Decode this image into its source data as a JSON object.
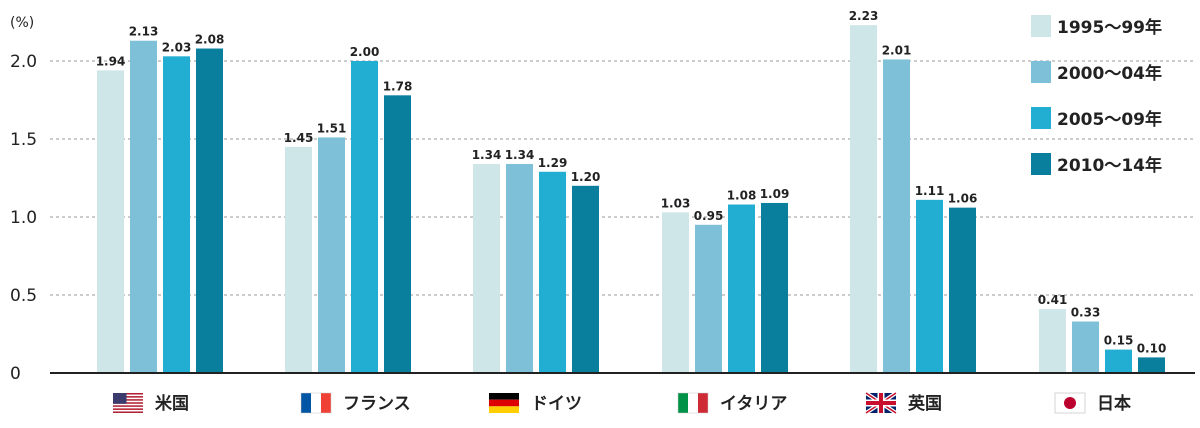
{
  "chart_data": {
    "type": "bar",
    "unit_label": "(%)",
    "categories": [
      "米国",
      "フランス",
      "ドイツ",
      "イタリア",
      "英国",
      "日本"
    ],
    "flags": [
      "us-flag-icon",
      "france-flag-icon",
      "germany-flag-icon",
      "italy-flag-icon",
      "uk-flag-icon",
      "japan-flag-icon"
    ],
    "series": [
      {
        "name": "1995～99年",
        "color": "#cfe6e9",
        "values": [
          1.94,
          1.45,
          1.34,
          1.03,
          2.23,
          0.41
        ],
        "labels": [
          "1.94",
          "1.45",
          "1.34",
          "1.03",
          "2.23",
          "0.41"
        ]
      },
      {
        "name": "2000～04年",
        "color": "#7ec0d7",
        "values": [
          2.13,
          1.51,
          1.34,
          0.95,
          2.01,
          0.33
        ],
        "labels": [
          "2.13",
          "1.51",
          "1.34",
          "0.95",
          "2.01",
          "0.33"
        ]
      },
      {
        "name": "2005～09年",
        "color": "#22aed3",
        "values": [
          2.03,
          2.0,
          1.29,
          1.08,
          1.11,
          0.15
        ],
        "labels": [
          "2.03",
          "2.00",
          "1.29",
          "1.08",
          "1.11",
          "0.15"
        ]
      },
      {
        "name": "2010～14年",
        "color": "#0a7f9d",
        "values": [
          2.08,
          1.78,
          1.2,
          1.09,
          1.06,
          0.1
        ],
        "labels": [
          "2.08",
          "1.78",
          "1.20",
          "1.09",
          "1.06",
          "0.10"
        ]
      }
    ],
    "y_ticks": [
      {
        "value": 0,
        "label": "0"
      },
      {
        "value": 0.5,
        "label": "0.5"
      },
      {
        "value": 1.0,
        "label": "1.0"
      },
      {
        "value": 1.5,
        "label": "1.5"
      },
      {
        "value": 2.0,
        "label": "2.0"
      }
    ],
    "ylim": [
      0,
      2.3
    ],
    "grid": "dashed horizontal",
    "legend_position": "top-right"
  }
}
